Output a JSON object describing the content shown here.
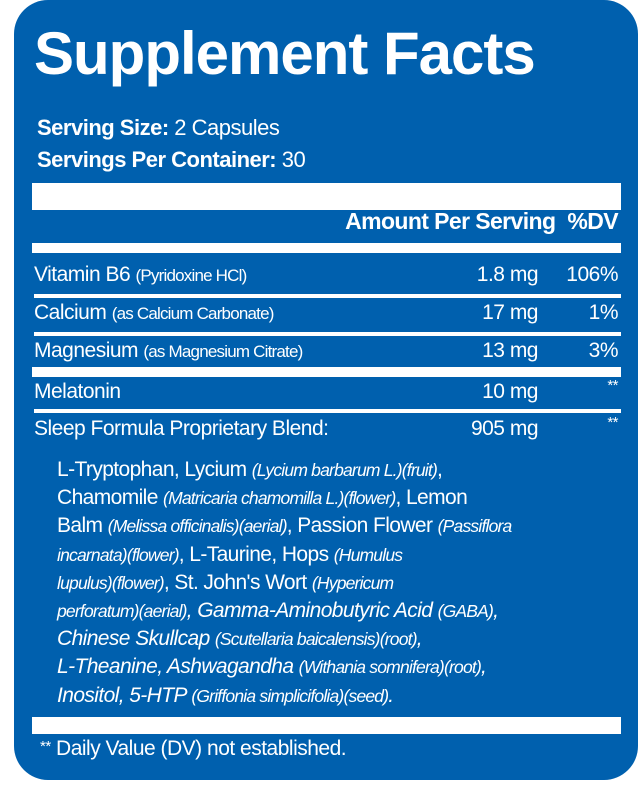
{
  "title": "Supplement Facts",
  "serving_size": {
    "label": "Serving Size:",
    "value": "2 Capsules"
  },
  "servings_per_container": {
    "label": "Servings Per Container:",
    "value": "30"
  },
  "header": {
    "amount": "Amount Per Serving",
    "dv": "%DV"
  },
  "rows": [
    {
      "name": "Vitamin B6",
      "source": "(Pyridoxine HCl)",
      "amount": "1.8 mg",
      "dv": "106%"
    },
    {
      "name": "Calcium",
      "source": "(as Calcium Carbonate)",
      "amount": "17 mg",
      "dv": "1%"
    },
    {
      "name": "Magnesium",
      "source": "(as Magnesium Citrate)",
      "amount": "13 mg",
      "dv": "3%"
    },
    {
      "name": "Melatonin",
      "source": "",
      "amount": "10 mg",
      "dv": "**"
    },
    {
      "name": "Sleep Formula Proprietary Blend:",
      "source": "",
      "amount": "905 mg",
      "dv": "**"
    }
  ],
  "ingredients": [
    [
      "L-Tryptophan,  Lycium ",
      "(Lycium barbarum L.)(fruit)",
      ","
    ],
    [
      "Chamomile ",
      "(Matricaria chamomilla L.)(flower)",
      ", Lemon"
    ],
    [
      "Balm ",
      "(Melissa officinalis)(aerial)",
      ", Passion Flower ",
      "(Passiflora"
    ],
    [
      "incarnata)(flower)",
      ", L-Taurine, Hops ",
      "(Humulus"
    ],
    [
      "lupulus)(flower)",
      ", St. John's Wort ",
      "(Hypericum"
    ],
    [
      "perforatum)(aerial)",
      ", Gamma-Aminobutyric Acid ",
      "(GABA)",
      ","
    ],
    [
      "Chinese Skullcap ",
      "(Scutellaria baicalensis)(root)",
      ","
    ],
    [
      "L-Theanine, Ashwagandha ",
      "(Withania somnifera)(root)",
      ","
    ],
    [
      "Inositol, 5-HTP ",
      "(Griffonia simplicifolia)(seed)",
      "."
    ]
  ],
  "footnote": {
    "mark": "**",
    "text": " Daily Value (DV) not established."
  },
  "colors": {
    "panel": "#0060AE",
    "text": "#FFFFFF"
  }
}
